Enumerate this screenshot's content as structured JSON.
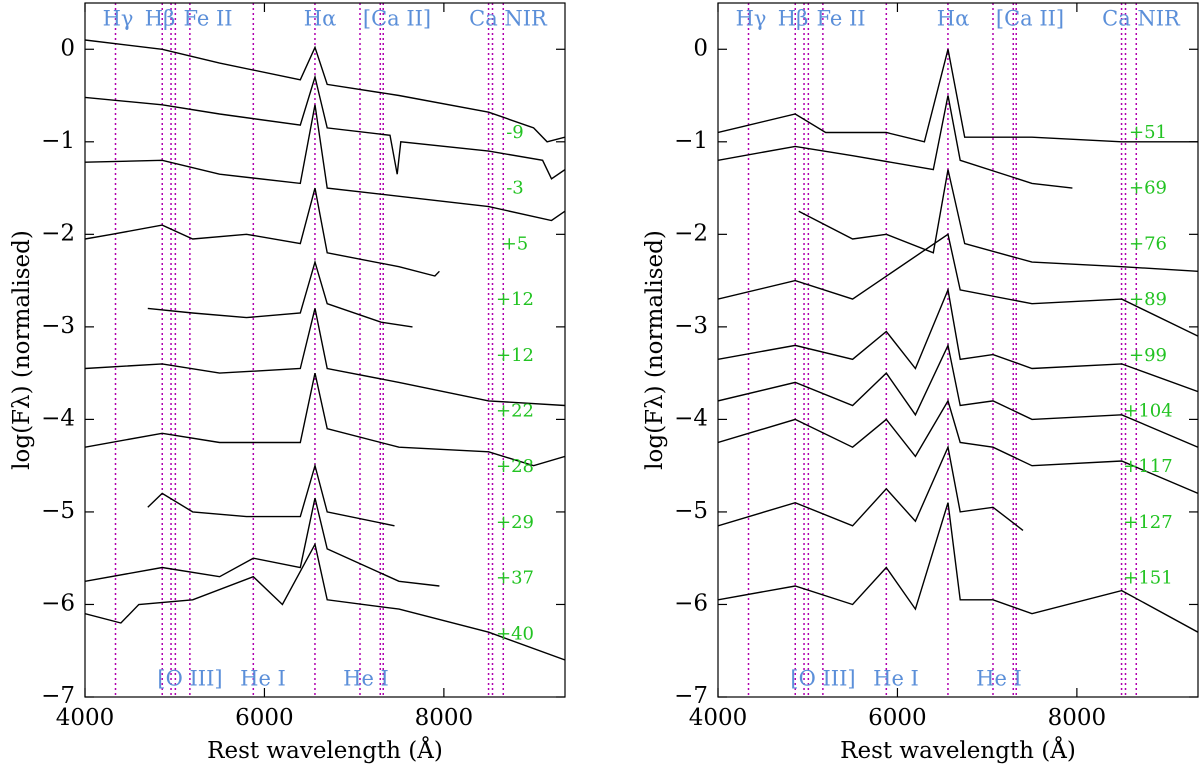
{
  "chart_data": [
    {
      "type": "line",
      "xlabel": "Rest wavelength (Å)",
      "ylabel": "log(Fλ) (normalised)",
      "xlim": [
        4000,
        9350
      ],
      "ylim": [
        -7,
        0.5
      ],
      "xticks": [
        4000,
        6000,
        8000
      ],
      "yticks": [
        {
          "value": 0,
          "label": "0"
        },
        {
          "value": -1,
          "label": "−1"
        },
        {
          "value": -2,
          "label": "−2"
        },
        {
          "value": -3,
          "label": "−3"
        },
        {
          "value": -4,
          "label": "−4"
        },
        {
          "value": -5,
          "label": "−5"
        },
        {
          "value": -6,
          "label": "−6"
        },
        {
          "value": -7,
          "label": "−7"
        }
      ],
      "vlines": [
        4340,
        4861,
        4959,
        5007,
        5169,
        5876,
        6563,
        7065,
        7291,
        7324,
        8498,
        8542,
        8662
      ],
      "vline_color": "#b000b0",
      "line_labels_top": [
        "Hγ",
        "Hβ",
        "Fe II",
        "Hα",
        "[Ca II]",
        "Ca NIR"
      ],
      "line_labels_bottom": [
        "[O III]",
        "He I",
        "He I"
      ],
      "series": [
        {
          "name": "-9",
          "color": "#000000",
          "x": [
            4000,
            4861,
            5500,
            6400,
            6563,
            6700,
            7500,
            8500,
            9000,
            9150,
            9350
          ],
          "values": [
            0.1,
            0.0,
            -0.15,
            -0.33,
            0.02,
            -0.38,
            -0.5,
            -0.68,
            -0.85,
            -1.0,
            -0.95
          ]
        },
        {
          "name": "-3",
          "color": "#000000",
          "x": [
            4000,
            4861,
            5500,
            6400,
            6563,
            6700,
            7400,
            7480,
            7520,
            8500,
            9100,
            9200,
            9350
          ],
          "values": [
            -0.52,
            -0.6,
            -0.7,
            -0.82,
            -0.3,
            -0.85,
            -0.93,
            -1.35,
            -1.0,
            -1.1,
            -1.2,
            -1.4,
            -1.3
          ]
        },
        {
          "name": "+5",
          "color": "#000000",
          "x": [
            4000,
            4861,
            5500,
            6400,
            6563,
            6700,
            7600,
            8500,
            9200,
            9350
          ],
          "values": [
            -1.22,
            -1.2,
            -1.35,
            -1.45,
            -0.6,
            -1.5,
            -1.6,
            -1.7,
            -1.85,
            -1.75
          ]
        },
        {
          "name": "+12",
          "color": "#000000",
          "x": [
            4000,
            4300,
            4861,
            5200,
            5800,
            6400,
            6563,
            6700,
            7500,
            7900,
            7950
          ],
          "values": [
            -2.05,
            -2.0,
            -1.9,
            -2.05,
            -2.0,
            -2.1,
            -1.5,
            -2.2,
            -2.35,
            -2.45,
            -2.4
          ]
        },
        {
          "name": "+12",
          "color": "#000000",
          "x": [
            4700,
            5200,
            5800,
            6400,
            6563,
            6700,
            7300,
            7650
          ],
          "values": [
            -2.8,
            -2.85,
            -2.9,
            -2.85,
            -2.3,
            -2.75,
            -2.95,
            -3.0
          ]
        },
        {
          "name": "+22",
          "color": "#000000",
          "x": [
            4000,
            4861,
            5500,
            6400,
            6563,
            6700,
            7500,
            8500,
            9350
          ],
          "values": [
            -3.45,
            -3.4,
            -3.5,
            -3.45,
            -2.8,
            -3.45,
            -3.6,
            -3.8,
            -3.85
          ]
        },
        {
          "name": "+28",
          "color": "#000000",
          "x": [
            4000,
            4861,
            5500,
            6400,
            6563,
            6700,
            7500,
            8500,
            9000,
            9350
          ],
          "values": [
            -4.3,
            -4.15,
            -4.25,
            -4.25,
            -3.5,
            -4.1,
            -4.3,
            -4.35,
            -4.5,
            -4.4
          ]
        },
        {
          "name": "+29",
          "color": "#000000",
          "x": [
            4700,
            4861,
            5200,
            5800,
            6400,
            6563,
            6700,
            7450
          ],
          "values": [
            -4.95,
            -4.8,
            -5.0,
            -5.05,
            -5.05,
            -4.5,
            -5.0,
            -5.15
          ]
        },
        {
          "name": "+37",
          "color": "#000000",
          "x": [
            4000,
            4861,
            5500,
            5876,
            6400,
            6563,
            6700,
            7500,
            7950
          ],
          "values": [
            -5.75,
            -5.6,
            -5.7,
            -5.5,
            -5.6,
            -4.85,
            -5.4,
            -5.75,
            -5.8
          ]
        },
        {
          "name": "+40",
          "color": "#000000",
          "x": [
            4000,
            4400,
            4600,
            5200,
            5876,
            6200,
            6563,
            6700,
            7500,
            8500,
            9350
          ],
          "values": [
            -6.1,
            -6.2,
            -6.0,
            -5.95,
            -5.7,
            -6.0,
            -5.35,
            -5.95,
            -6.05,
            -6.3,
            -6.6
          ]
        }
      ]
    },
    {
      "type": "line",
      "xlabel": "Rest wavelength (Å)",
      "ylabel": "log(Fλ) (normalised)",
      "xlim": [
        4000,
        9350
      ],
      "ylim": [
        -7,
        0.5
      ],
      "xticks": [
        4000,
        6000,
        8000
      ],
      "yticks": [
        {
          "value": 0,
          "label": "0"
        },
        {
          "value": -1,
          "label": "−1"
        },
        {
          "value": -2,
          "label": "−2"
        },
        {
          "value": -3,
          "label": "−3"
        },
        {
          "value": -4,
          "label": "−4"
        },
        {
          "value": -5,
          "label": "−5"
        },
        {
          "value": -6,
          "label": "−6"
        },
        {
          "value": -7,
          "label": "−7"
        }
      ],
      "vlines": [
        4340,
        4861,
        4959,
        5007,
        5169,
        5876,
        6563,
        7065,
        7291,
        7324,
        8498,
        8542,
        8662
      ],
      "vline_color": "#b000b0",
      "line_labels_top": [
        "Hγ",
        "Hβ",
        "Fe II",
        "Hα",
        "[Ca II]",
        "Ca NIR"
      ],
      "line_labels_bottom": [
        "[O III]",
        "He I",
        "He I"
      ],
      "series": [
        {
          "name": "+51",
          "color": "#000000",
          "x": [
            4000,
            4861,
            5200,
            5876,
            6300,
            6563,
            6750,
            7500,
            8500,
            9350
          ],
          "values": [
            -0.9,
            -0.7,
            -0.9,
            -0.9,
            -1.0,
            0.0,
            -0.95,
            -0.95,
            -1.0,
            -1.0
          ]
        },
        {
          "name": "+69",
          "color": "#000000",
          "x": [
            4000,
            4861,
            5500,
            6400,
            6563,
            6700,
            7500,
            7950
          ],
          "values": [
            -1.2,
            -1.05,
            -1.15,
            -1.3,
            -0.5,
            -1.2,
            -1.45,
            -1.5
          ]
        },
        {
          "name": "+76",
          "color": "#000000",
          "x": [
            4900,
            5500,
            5876,
            6400,
            6563,
            6750,
            7500,
            8500,
            9350
          ],
          "values": [
            -1.75,
            -2.05,
            -2.0,
            -2.2,
            -1.3,
            -2.1,
            -2.3,
            -2.35,
            -2.4
          ]
        },
        {
          "name": "+89",
          "color": "#000000",
          "x": [
            4000,
            4861,
            5500,
            6563,
            6700,
            7500,
            8500,
            9350
          ],
          "values": [
            -2.7,
            -2.5,
            -2.7,
            -2.0,
            -2.6,
            -2.75,
            -2.7,
            -3.1
          ]
        },
        {
          "name": "+99",
          "color": "#000000",
          "x": [
            4000,
            4861,
            5500,
            5876,
            6200,
            6563,
            6700,
            7065,
            7500,
            8500,
            9350
          ],
          "values": [
            -3.35,
            -3.2,
            -3.35,
            -3.05,
            -3.45,
            -2.6,
            -3.35,
            -3.3,
            -3.45,
            -3.4,
            -3.7
          ]
        },
        {
          "name": "+104",
          "color": "#000000",
          "x": [
            4000,
            4861,
            5500,
            5876,
            6200,
            6563,
            6700,
            7065,
            7500,
            8500,
            9350
          ],
          "values": [
            -3.8,
            -3.6,
            -3.85,
            -3.5,
            -3.95,
            -3.2,
            -3.85,
            -3.8,
            -4.0,
            -3.95,
            -4.3
          ]
        },
        {
          "name": "+117",
          "color": "#000000",
          "x": [
            4000,
            4861,
            5500,
            5876,
            6200,
            6563,
            6700,
            7065,
            7500,
            8500,
            9350
          ],
          "values": [
            -4.25,
            -4.0,
            -4.3,
            -4.0,
            -4.4,
            -3.8,
            -4.25,
            -4.3,
            -4.5,
            -4.45,
            -4.8
          ]
        },
        {
          "name": "+127",
          "color": "#000000",
          "x": [
            4000,
            4861,
            5500,
            5876,
            6200,
            6563,
            6700,
            7065,
            7400
          ],
          "values": [
            -5.15,
            -4.9,
            -5.15,
            -4.75,
            -5.1,
            -4.3,
            -5.0,
            -4.95,
            -5.2
          ]
        },
        {
          "name": "+151",
          "color": "#000000",
          "x": [
            4000,
            4861,
            5500,
            5876,
            6200,
            6563,
            6700,
            7065,
            7500,
            8500,
            9350
          ],
          "values": [
            -5.95,
            -5.8,
            -6.0,
            -5.6,
            -6.05,
            -4.9,
            -5.95,
            -5.95,
            -6.1,
            -5.85,
            -6.3
          ]
        }
      ]
    }
  ]
}
